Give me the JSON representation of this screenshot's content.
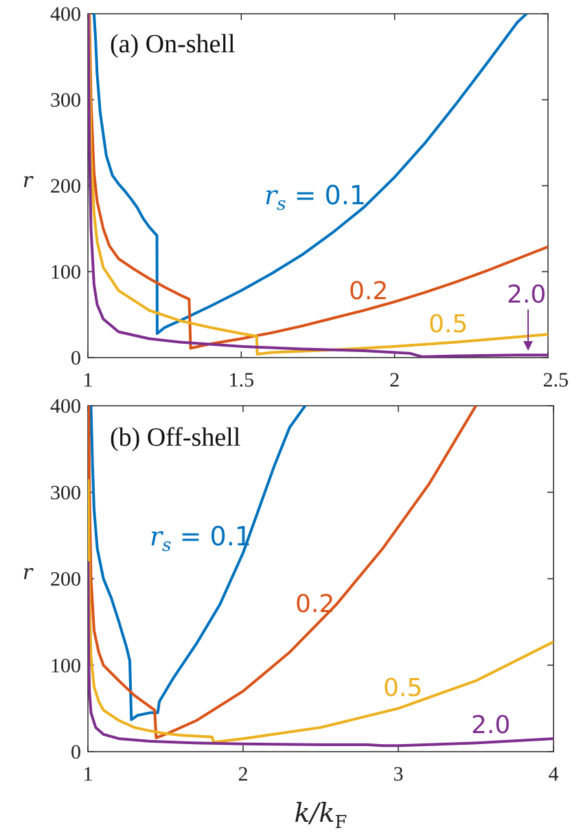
{
  "chart_data": [
    {
      "type": "line",
      "title": "(a) On-shell",
      "xlabel": "",
      "ylabel": "r",
      "xlim": [
        1,
        2.5
      ],
      "ylim": [
        0,
        400
      ],
      "xticks": [
        "1",
        "1.5",
        "2",
        "2.5"
      ],
      "yticks": [
        "0",
        "100",
        "200",
        "300",
        "400"
      ],
      "series": [
        {
          "name": "rs = 0.1",
          "label_prefix": "r",
          "label_sub": "s",
          "label_suffix": " = 0.1",
          "color": "#0072BD",
          "x": [
            1.02,
            1.025,
            1.03,
            1.04,
            1.06,
            1.08,
            1.1,
            1.12,
            1.14,
            1.16,
            1.18,
            1.2,
            1.225,
            1.226,
            1.25,
            1.3,
            1.4,
            1.5,
            1.6,
            1.7,
            1.8,
            1.9,
            2.0,
            2.1,
            2.2,
            2.3,
            2.4,
            2.43
          ],
          "y": [
            400,
            370,
            330,
            285,
            235,
            212,
            202,
            194,
            185,
            175,
            162,
            152,
            142,
            28,
            35,
            43,
            60,
            78,
            98,
            120,
            146,
            175,
            210,
            250,
            295,
            342,
            390,
            400
          ]
        },
        {
          "name": "0.2",
          "label": "0.2",
          "color": "#D95319",
          "x": [
            1.005,
            1.01,
            1.02,
            1.03,
            1.05,
            1.07,
            1.1,
            1.15,
            1.2,
            1.25,
            1.3,
            1.33,
            1.335,
            1.4,
            1.5,
            1.6,
            1.7,
            1.8,
            1.9,
            2.0,
            2.1,
            2.2,
            2.3,
            2.4,
            2.5
          ],
          "y": [
            400,
            300,
            215,
            182,
            150,
            130,
            115,
            103,
            92,
            82,
            73,
            68,
            11,
            16,
            22,
            29,
            37,
            46,
            55,
            65,
            76,
            88,
            101,
            115,
            129
          ]
        },
        {
          "name": "0.5",
          "label": "0.5",
          "color": "#EDB120",
          "x": [
            1.003,
            1.01,
            1.02,
            1.03,
            1.05,
            1.1,
            1.2,
            1.3,
            1.4,
            1.5,
            1.55,
            1.552,
            1.6,
            1.8,
            2.0,
            2.2,
            2.4,
            2.5
          ],
          "y": [
            400,
            240,
            168,
            135,
            105,
            78,
            55,
            43,
            35,
            28,
            25,
            4,
            6,
            9,
            13,
            18,
            24,
            27
          ]
        },
        {
          "name": "2.0",
          "label": "2.0",
          "color": "#7E2F8E",
          "x": [
            1.001,
            1.005,
            1.01,
            1.02,
            1.03,
            1.05,
            1.1,
            1.2,
            1.3,
            1.5,
            1.7,
            1.9,
            2.0,
            2.05,
            2.07,
            2.09,
            2.2,
            2.4,
            2.5
          ],
          "y": [
            400,
            250,
            150,
            85,
            62,
            45,
            30,
            22,
            18,
            13,
            10,
            8,
            6,
            5,
            3,
            1,
            2,
            3,
            3
          ]
        }
      ]
    },
    {
      "type": "line",
      "title": "(b) Off-shell",
      "xlabel": "k/kF",
      "ylabel": "r",
      "xlim": [
        1,
        4
      ],
      "ylim": [
        0,
        400
      ],
      "xticks": [
        "1",
        "2",
        "3",
        "4"
      ],
      "yticks": [
        "0",
        "100",
        "200",
        "300",
        "400"
      ],
      "series": [
        {
          "name": "rs = 0.1",
          "label_prefix": "r",
          "label_sub": "s",
          "label_suffix": " = 0.1",
          "color": "#0072BD",
          "x": [
            1.02,
            1.03,
            1.04,
            1.06,
            1.1,
            1.15,
            1.2,
            1.25,
            1.27,
            1.28,
            1.32,
            1.4,
            1.45,
            1.46,
            1.55,
            1.7,
            1.85,
            2.0,
            2.1,
            2.2,
            2.3,
            2.4
          ],
          "y": [
            400,
            330,
            280,
            235,
            200,
            178,
            150,
            120,
            105,
            37,
            42,
            45,
            45,
            58,
            85,
            125,
            170,
            230,
            280,
            330,
            375,
            400
          ]
        },
        {
          "name": "0.2",
          "label": "0.2",
          "color": "#D95319",
          "x": [
            1.005,
            1.01,
            1.02,
            1.04,
            1.07,
            1.1,
            1.2,
            1.3,
            1.43,
            1.44,
            1.5,
            1.7,
            2.0,
            2.3,
            2.6,
            2.9,
            3.2,
            3.4,
            3.5
          ],
          "y": [
            400,
            300,
            200,
            140,
            115,
            100,
            82,
            65,
            48,
            16,
            20,
            36,
            70,
            115,
            170,
            235,
            310,
            370,
            400
          ]
        },
        {
          "name": "0.5",
          "label": "0.5",
          "color": "#EDB120",
          "x": [
            1.002,
            1.01,
            1.02,
            1.04,
            1.07,
            1.1,
            1.2,
            1.3,
            1.4,
            1.5,
            1.6,
            1.7,
            1.8,
            1.81,
            2.0,
            2.5,
            3.0,
            3.5,
            4.0
          ],
          "y": [
            315,
            180,
            110,
            75,
            58,
            48,
            36,
            28,
            24,
            21,
            19,
            18,
            17,
            11,
            15,
            28,
            50,
            82,
            127
          ]
        },
        {
          "name": "2.0",
          "label": "2.0",
          "color": "#7E2F8E",
          "x": [
            1.001,
            1.005,
            1.01,
            1.02,
            1.05,
            1.1,
            1.2,
            1.4,
            1.7,
            2.0,
            2.5,
            2.8,
            2.9,
            3.0,
            3.5,
            4.0
          ],
          "y": [
            220,
            110,
            70,
            45,
            28,
            20,
            15,
            12,
            10,
            9,
            8,
            8,
            7,
            7,
            10,
            15
          ]
        }
      ]
    }
  ]
}
